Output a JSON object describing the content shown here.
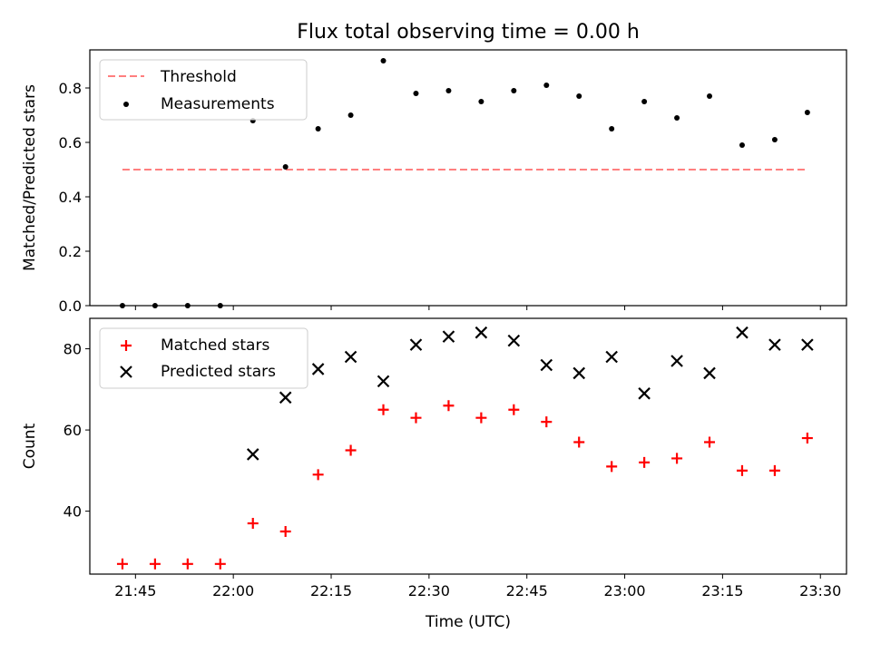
{
  "chart_data": [
    {
      "type": "scatter",
      "title": "Flux total observing time = 0.00 h",
      "xlabel": "",
      "ylabel": "Matched/Predicted stars",
      "ylim": [
        0,
        0.94
      ],
      "yticks": [
        "0.0",
        "0.2",
        "0.4",
        "0.6",
        "0.8"
      ],
      "legend_position": "top-left",
      "threshold": {
        "name": "Threshold",
        "value": 0.5,
        "x_start": "21:43",
        "x_end": "23:28",
        "color": "#ff7f7f",
        "style": "dashed"
      },
      "series": [
        {
          "name": "Measurements",
          "color": "#000000",
          "marker": "dot",
          "x": [
            "21:43",
            "21:48",
            "21:53",
            "21:58",
            "22:03",
            "22:08",
            "22:13",
            "22:18",
            "22:23",
            "22:28",
            "22:33",
            "22:38",
            "22:43",
            "22:48",
            "22:53",
            "22:58",
            "23:03",
            "23:08",
            "23:13",
            "23:18",
            "23:23",
            "23:28"
          ],
          "y": [
            0.0,
            0.0,
            0.0,
            0.0,
            0.68,
            0.51,
            0.65,
            0.7,
            0.9,
            0.78,
            0.79,
            0.75,
            0.79,
            0.81,
            0.77,
            0.65,
            0.75,
            0.69,
            0.77,
            0.59,
            0.61,
            0.71
          ]
        }
      ]
    },
    {
      "type": "scatter",
      "title": "",
      "xlabel": "Time (UTC)",
      "ylabel": "Count",
      "ylim": [
        24.5,
        87.5
      ],
      "yticks": [
        "40",
        "60",
        "80"
      ],
      "xticks": [
        "21:45",
        "22:00",
        "22:15",
        "22:30",
        "22:45",
        "23:00",
        "23:15",
        "23:30"
      ],
      "xlim": [
        "21:38",
        "23:34"
      ],
      "legend_position": "top-left",
      "series": [
        {
          "name": "Matched stars",
          "color": "#ff0000",
          "marker": "plus",
          "x": [
            "21:43",
            "21:48",
            "21:53",
            "21:58",
            "22:03",
            "22:08",
            "22:13",
            "22:18",
            "22:23",
            "22:28",
            "22:33",
            "22:38",
            "22:43",
            "22:48",
            "22:53",
            "22:58",
            "23:03",
            "23:08",
            "23:13",
            "23:18",
            "23:23",
            "23:28"
          ],
          "y": [
            27,
            27,
            27,
            27,
            37,
            35,
            49,
            55,
            65,
            63,
            66,
            63,
            65,
            62,
            57,
            51,
            52,
            53,
            57,
            50,
            50,
            58
          ]
        },
        {
          "name": "Predicted stars",
          "color": "#000000",
          "marker": "x",
          "x": [
            "22:03",
            "22:08",
            "22:13",
            "22:18",
            "22:23",
            "22:28",
            "22:33",
            "22:38",
            "22:43",
            "22:48",
            "22:53",
            "22:58",
            "23:03",
            "23:08",
            "23:13",
            "23:18",
            "23:23",
            "23:28"
          ],
          "y": [
            54,
            68,
            75,
            78,
            72,
            81,
            83,
            84,
            82,
            76,
            74,
            78,
            69,
            77,
            74,
            84,
            81,
            81
          ]
        }
      ]
    }
  ]
}
